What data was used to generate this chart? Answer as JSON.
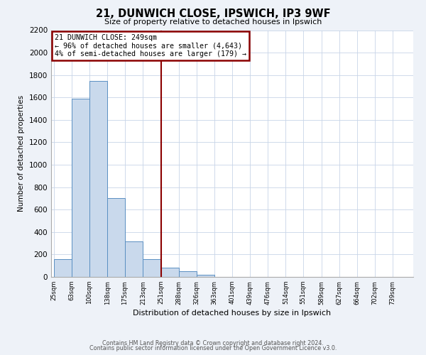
{
  "title": "21, DUNWICH CLOSE, IPSWICH, IP3 9WF",
  "subtitle": "Size of property relative to detached houses in Ipswich",
  "xlabel": "Distribution of detached houses by size in Ipswich",
  "ylabel": "Number of detached properties",
  "bar_edges": [
    25,
    63,
    100,
    138,
    175,
    213,
    251,
    288,
    326,
    363,
    401,
    439,
    476,
    514,
    551,
    589,
    627,
    664,
    702,
    739,
    777
  ],
  "bar_heights": [
    160,
    1590,
    1750,
    700,
    315,
    160,
    80,
    50,
    20,
    0,
    0,
    0,
    0,
    0,
    0,
    0,
    0,
    0,
    0,
    0
  ],
  "property_line_x": 251,
  "bar_color": "#c9d9ec",
  "bar_edge_color": "#5a8fc2",
  "line_color": "#8b0000",
  "ylim": [
    0,
    2200
  ],
  "yticks": [
    0,
    200,
    400,
    600,
    800,
    1000,
    1200,
    1400,
    1600,
    1800,
    2000,
    2200
  ],
  "annotation_title": "21 DUNWICH CLOSE: 249sqm",
  "annotation_line1": "← 96% of detached houses are smaller (4,643)",
  "annotation_line2": "4% of semi-detached houses are larger (179) →",
  "footer1": "Contains HM Land Registry data © Crown copyright and database right 2024.",
  "footer2": "Contains public sector information licensed under the Open Government Licence v3.0.",
  "bg_color": "#eef2f8",
  "plot_bg_color": "#ffffff",
  "grid_color": "#c8d4e8"
}
